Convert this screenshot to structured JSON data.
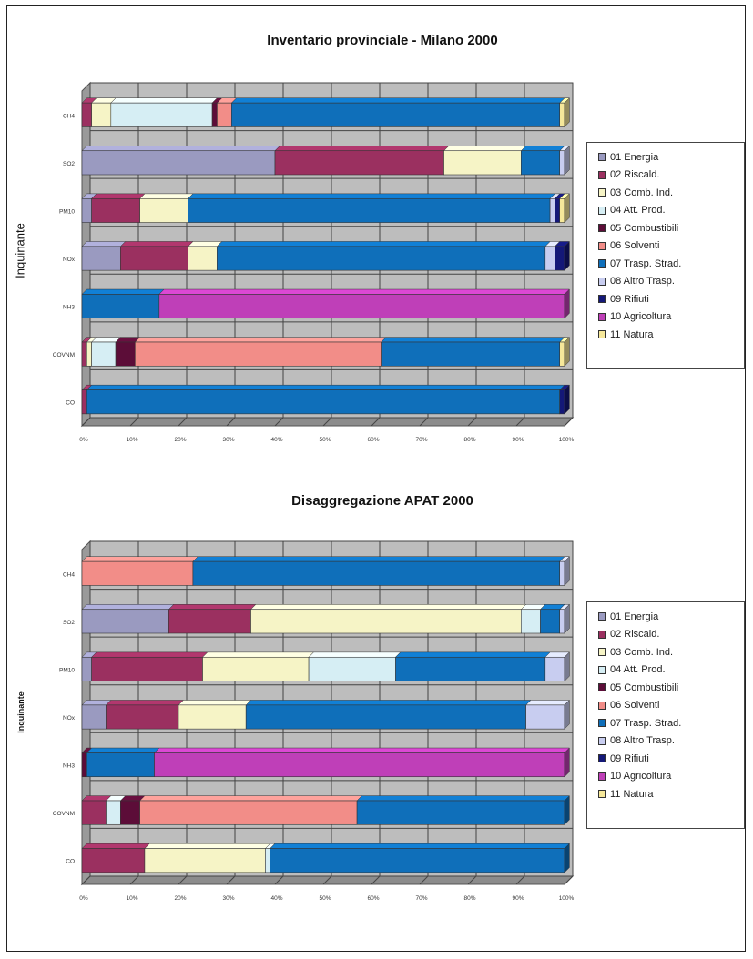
{
  "colors": {
    "01 Energia": "#9a9ac0",
    "02 Riscald.": "#9b3060",
    "03 Comb. Ind.": "#f6f4c6",
    "04 Att. Prod.": "#d6eef4",
    "05 Combustibili": "#5c0d38",
    "06 Solventi": "#f28d88",
    "07 Trasp. Strad.": "#0f6fba",
    "08 Altro Trasp.": "#c8cdf0",
    "09 Rifiuti": "#141878",
    "10 Agricoltura": "#bf3fb8",
    "11 Natura": "#f6e89a"
  },
  "legend_entries": [
    "01 Energia",
    "02 Riscald.",
    "03 Comb. Ind.",
    "04 Att. Prod.",
    "05 Combustibili",
    "06 Solventi",
    "07 Trasp. Strad.",
    "08 Altro Trasp.",
    "09 Rifiuti",
    "10 Agricoltura",
    "11 Natura"
  ],
  "chart_data": [
    {
      "type": "bar",
      "stacked": "100%",
      "orientation": "horizontal",
      "title": "Inventario provinciale - Milano 2000",
      "ylabel": "Inquinante",
      "xlim": [
        0,
        100
      ],
      "x_ticks": [
        "0%",
        "10%",
        "20%",
        "30%",
        "40%",
        "50%",
        "60%",
        "70%",
        "80%",
        "90%",
        "100%"
      ],
      "grid": true,
      "legend_position": "right",
      "categories": [
        "CH4",
        "SO2",
        "PM10",
        "NOx",
        "NH3",
        "COVNM",
        "CO"
      ],
      "series": [
        {
          "name": "01 Energia",
          "values": [
            0,
            40,
            2,
            8,
            0,
            0,
            0
          ]
        },
        {
          "name": "02 Riscald.",
          "values": [
            2,
            35,
            10,
            14,
            0,
            1,
            1
          ]
        },
        {
          "name": "03 Comb. Ind.",
          "values": [
            4,
            16,
            10,
            6,
            0,
            1,
            0
          ]
        },
        {
          "name": "04 Att. Prod.",
          "values": [
            21,
            0,
            0,
            0,
            0,
            5,
            0
          ]
        },
        {
          "name": "05 Combustibili",
          "values": [
            1,
            0,
            0,
            0,
            0,
            4,
            0
          ]
        },
        {
          "name": "06 Solventi",
          "values": [
            3,
            0,
            0,
            0,
            0,
            51,
            0
          ]
        },
        {
          "name": "07 Trasp. Strad.",
          "values": [
            68,
            8,
            75,
            68,
            16,
            37,
            98
          ]
        },
        {
          "name": "08 Altro Trasp.",
          "values": [
            0,
            1,
            1,
            2,
            0,
            0,
            0
          ]
        },
        {
          "name": "09 Rifiuti",
          "values": [
            0,
            0,
            1,
            2,
            0,
            0,
            1
          ]
        },
        {
          "name": "10 Agricoltura",
          "values": [
            0,
            0,
            0,
            0,
            84,
            0,
            0
          ]
        },
        {
          "name": "11 Natura",
          "values": [
            1,
            0,
            1,
            0,
            0,
            1,
            0
          ]
        }
      ]
    },
    {
      "type": "bar",
      "stacked": "100%",
      "orientation": "horizontal",
      "title": "Disaggregazione APAT 2000",
      "ylabel": "Inquinante",
      "xlim": [
        0,
        100
      ],
      "x_ticks": [
        "0%",
        "10%",
        "20%",
        "30%",
        "40%",
        "50%",
        "60%",
        "70%",
        "80%",
        "90%",
        "100%"
      ],
      "grid": true,
      "legend_position": "right",
      "categories": [
        "CH4",
        "SO2",
        "PM10",
        "NOx",
        "NH3",
        "COVNM",
        "CO"
      ],
      "series": [
        {
          "name": "01 Energia",
          "values": [
            0,
            18,
            2,
            5,
            0,
            0,
            0
          ]
        },
        {
          "name": "02 Riscald.",
          "values": [
            0,
            17,
            23,
            15,
            0,
            5,
            13
          ]
        },
        {
          "name": "03 Comb. Ind.",
          "values": [
            0,
            56,
            22,
            14,
            0,
            0,
            25
          ]
        },
        {
          "name": "04 Att. Prod.",
          "values": [
            0,
            4,
            18,
            0,
            0,
            3,
            1
          ]
        },
        {
          "name": "05 Combustibili",
          "values": [
            0,
            0,
            0,
            0,
            1,
            4,
            0
          ]
        },
        {
          "name": "06 Solventi",
          "values": [
            23,
            0,
            0,
            0,
            0,
            45,
            0
          ]
        },
        {
          "name": "07 Trasp. Strad.",
          "values": [
            76,
            4,
            31,
            58,
            14,
            43,
            61
          ]
        },
        {
          "name": "08 Altro Trasp.",
          "values": [
            1,
            1,
            4,
            8,
            0,
            0,
            0
          ]
        },
        {
          "name": "09 Rifiuti",
          "values": [
            0,
            0,
            0,
            0,
            0,
            0,
            0
          ]
        },
        {
          "name": "10 Agricoltura",
          "values": [
            0,
            0,
            0,
            0,
            85,
            0,
            0
          ]
        },
        {
          "name": "11 Natura",
          "values": [
            0,
            0,
            0,
            0,
            0,
            0,
            0
          ]
        }
      ]
    }
  ]
}
